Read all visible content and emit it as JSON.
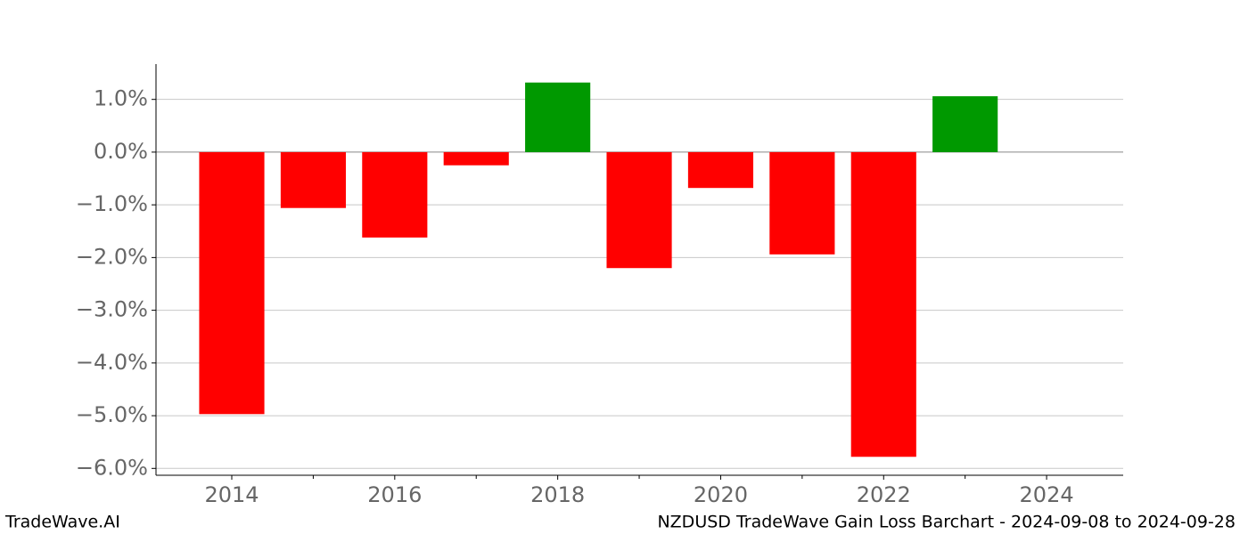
{
  "chart_data": {
    "type": "bar",
    "x": [
      2014,
      2015,
      2016,
      2017,
      2018,
      2019,
      2020,
      2021,
      2022,
      2023
    ],
    "values": [
      -4.97,
      -1.06,
      -1.62,
      -0.25,
      1.32,
      -2.2,
      -0.68,
      -1.94,
      -5.78,
      1.06
    ],
    "colors": [
      "#ff0000",
      "#ff0000",
      "#ff0000",
      "#ff0000",
      "#009900",
      "#ff0000",
      "#ff0000",
      "#ff0000",
      "#ff0000",
      "#009900"
    ],
    "xlim": [
      2013.07,
      2024.94
    ],
    "xticks": [
      2014,
      2016,
      2018,
      2020,
      2022,
      2024
    ],
    "xminorticks": [
      2015,
      2017,
      2019,
      2021,
      2023
    ],
    "ylim": [
      -6.13,
      1.67
    ],
    "yticks": [
      {
        "value": -6,
        "label": "−6.0%"
      },
      {
        "value": -5,
        "label": "−5.0%"
      },
      {
        "value": -4,
        "label": "−4.0%"
      },
      {
        "value": -3,
        "label": "−3.0%"
      },
      {
        "value": -2,
        "label": "−2.0%"
      },
      {
        "value": -1,
        "label": "−1.0%"
      },
      {
        "value": 0,
        "label": "0.0%"
      },
      {
        "value": 1,
        "label": "1.0%"
      }
    ],
    "grid": true,
    "watermark": "TradeWave.AI",
    "footer": "NZDUSD TradeWave Gain Loss Barchart - 2024-09-08 to 2024-09-28"
  }
}
